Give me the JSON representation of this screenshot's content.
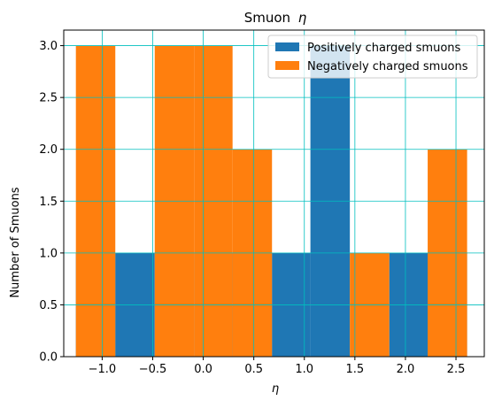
{
  "chart_data": {
    "type": "bar",
    "title_main": "Smuon",
    "title_symbol": "η",
    "xlabel": "η",
    "ylabel": "Number of Smuons",
    "xlim": [
      -1.38,
      2.78
    ],
    "ylim": [
      0,
      3.15
    ],
    "xticks": [
      -1.0,
      -0.5,
      0.0,
      0.5,
      1.0,
      1.5,
      2.0,
      2.5
    ],
    "xtick_labels": [
      "−1.0",
      "−0.5",
      "0.0",
      "0.5",
      "1.0",
      "1.5",
      "2.0",
      "2.5"
    ],
    "yticks": [
      0.0,
      0.5,
      1.0,
      1.5,
      2.0,
      2.5,
      3.0
    ],
    "ytick_labels": [
      "0.0",
      "0.5",
      "1.0",
      "1.5",
      "2.0",
      "2.5",
      "3.0"
    ],
    "grid": true,
    "grid_color": "#00bfbf",
    "legend_position": "top-right",
    "bin_edges": [
      -1.26,
      -0.87,
      -0.48,
      -0.09,
      0.29,
      0.68,
      1.06,
      1.45,
      1.84,
      2.22,
      2.61
    ],
    "series": [
      {
        "name": "Positively charged smuons",
        "color": "#1f77b4",
        "values": [
          1,
          1,
          0,
          1,
          1,
          1,
          3,
          0,
          1,
          1
        ]
      },
      {
        "name": "Negatively charged smuons",
        "color": "#ff7f0e",
        "values": [
          3,
          0,
          3,
          3,
          2,
          0,
          0,
          1,
          0,
          2
        ]
      }
    ]
  }
}
